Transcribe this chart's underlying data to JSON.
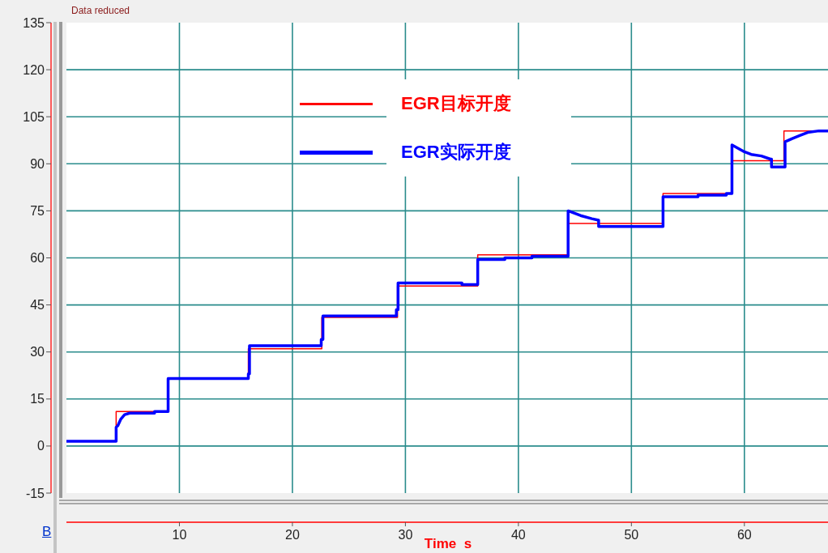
{
  "chart_data": {
    "type": "line",
    "annotations": [
      "Data reduced",
      "B"
    ],
    "xlabel": "Time  s",
    "xlim": [
      0,
      67.4
    ],
    "xticks": [
      10,
      20,
      30,
      40,
      50,
      60
    ],
    "ylim": [
      -15,
      135
    ],
    "yticks": [
      -15,
      0,
      15,
      30,
      45,
      60,
      75,
      90,
      105,
      120,
      135
    ],
    "grid": true,
    "legend": "top",
    "series": [
      {
        "name": "EGR目标开度",
        "type": "step",
        "color": "#ff0000",
        "x": [
          0,
          4.4,
          9.0,
          16.1,
          22.6,
          29.3,
          36.4,
          44.4,
          52.8,
          58.9,
          63.5,
          67.4
        ],
        "values": [
          1.5,
          11,
          21.5,
          31,
          41,
          51,
          61,
          71,
          80.5,
          91,
          100.5,
          100.5
        ]
      },
      {
        "name": "EGR实际开度",
        "type": "line",
        "color": "#0000ff",
        "x": [
          0,
          4.4,
          4.4,
          4.55,
          4.8,
          5.15,
          5.6,
          7.8,
          7.8,
          9.0,
          9.0,
          16.1,
          16.1,
          16.2,
          16.2,
          22.55,
          22.55,
          22.7,
          22.7,
          29.2,
          29.2,
          29.35,
          29.35,
          35.0,
          35.0,
          36.4,
          36.4,
          38.8,
          38.8,
          41.2,
          41.2,
          44.4,
          44.4,
          45.5,
          46.5,
          47.1,
          47.1,
          52.8,
          52.8,
          55.9,
          55.9,
          58.4,
          58.4,
          58.9,
          58.9,
          59.9,
          60.6,
          61.5,
          62.3,
          62.4,
          62.4,
          63.6,
          63.6,
          64.2,
          64.9,
          65.6,
          66.6,
          67.4
        ],
        "values": [
          1.5,
          1.5,
          6,
          6.5,
          8.5,
          10,
          10.5,
          10.5,
          11,
          11,
          21.5,
          21.5,
          23,
          23,
          32,
          32,
          34,
          34,
          41.5,
          41.5,
          43.5,
          43.5,
          52,
          52,
          51.5,
          51.5,
          59.5,
          59.5,
          60,
          60,
          60.5,
          60.5,
          75,
          73.5,
          72.5,
          72,
          70,
          70,
          79.5,
          79.5,
          80,
          80,
          80.5,
          80.5,
          96,
          94,
          93,
          92.5,
          91.5,
          91.5,
          89,
          89,
          97,
          98,
          99,
          100,
          100.5,
          100.5
        ]
      }
    ]
  }
}
